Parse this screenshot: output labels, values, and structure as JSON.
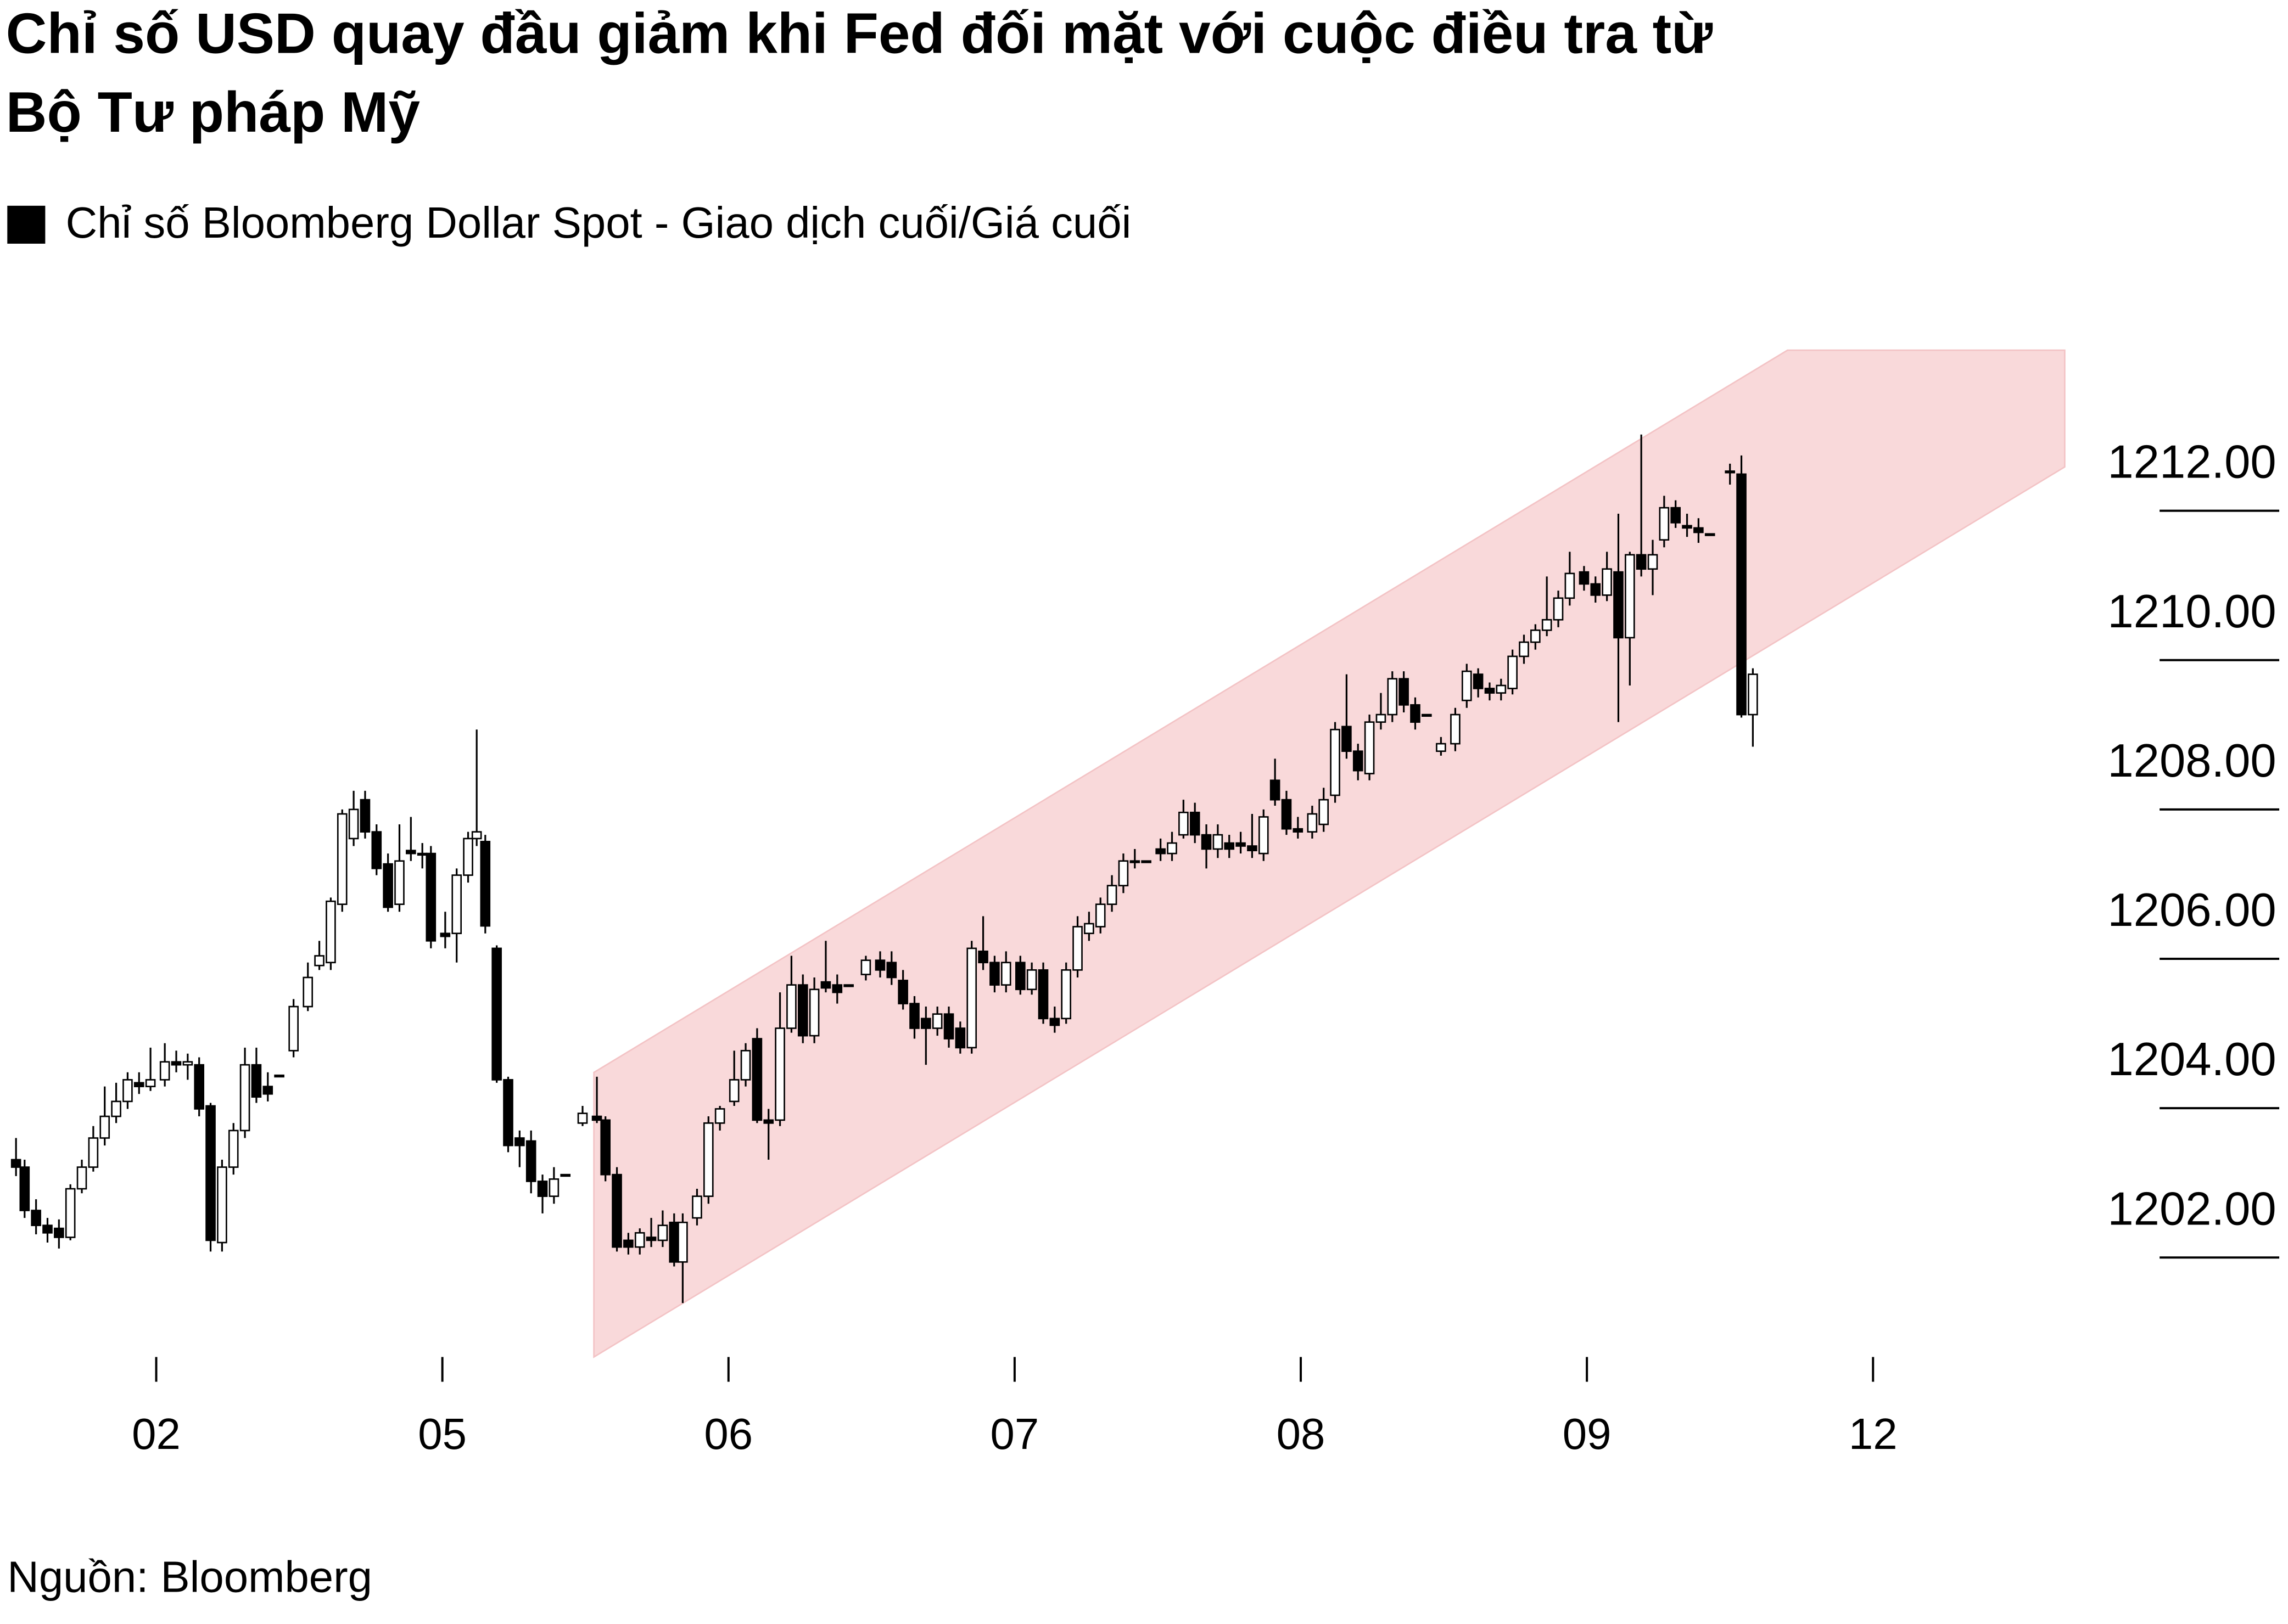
{
  "chart_data": {
    "type": "candlestick",
    "title": [
      "Chỉ số USD quay đầu giảm khi Fed đối mặt với cuộc điều tra từ",
      "Bộ Tư pháp Mỹ"
    ],
    "source": "Nguồn: Bloomberg",
    "xlim": [
      -0.546,
      6.67
    ],
    "ylim": [
      1200.57,
      1214.15
    ],
    "xticks": [
      {
        "value": 0,
        "label": "02"
      },
      {
        "value": 1,
        "label": "05"
      },
      {
        "value": 2,
        "label": "06"
      },
      {
        "value": 3,
        "label": "07"
      },
      {
        "value": 4,
        "label": "08"
      },
      {
        "value": 5,
        "label": "09"
      },
      {
        "value": 6,
        "label": "12"
      }
    ],
    "yticks": [
      {
        "value": 1202,
        "label": "1202.00"
      },
      {
        "value": 1204,
        "label": "1204.00"
      },
      {
        "value": 1206,
        "label": "1206.00"
      },
      {
        "value": 1208,
        "label": "1208.00"
      },
      {
        "value": 1210,
        "label": "1210.00"
      },
      {
        "value": 1212,
        "label": "1212.00"
      }
    ],
    "series": [
      {
        "name": "Chỉ số Bloomberg Dollar Spot - Giao dịch cuối/Giá cuối",
        "color": "#000000",
        "x": [
          -0.49,
          -0.46,
          -0.42,
          -0.38,
          -0.34,
          -0.3,
          -0.26,
          -0.22,
          -0.18,
          -0.14,
          -0.1,
          -0.06,
          -0.02,
          0.03,
          0.07,
          0.11,
          0.15,
          0.19,
          0.23,
          0.27,
          0.31,
          0.35,
          0.39,
          0.43,
          0.48,
          0.53,
          0.57,
          0.61,
          0.65,
          0.69,
          0.73,
          0.77,
          0.81,
          0.85,
          0.89,
          0.93,
          0.96,
          1.01,
          1.05,
          1.09,
          1.12,
          1.15,
          1.19,
          1.23,
          1.27,
          1.31,
          1.35,
          1.39,
          1.43,
          1.49,
          1.54,
          1.57,
          1.61,
          1.65,
          1.69,
          1.73,
          1.77,
          1.81,
          1.84,
          1.89,
          1.93,
          1.97,
          2.02,
          2.06,
          2.1,
          2.14,
          2.18,
          2.22,
          2.26,
          2.3,
          2.34,
          2.38,
          2.42,
          2.48,
          2.53,
          2.57,
          2.61,
          2.65,
          2.69,
          2.73,
          2.77,
          2.81,
          2.85,
          2.89,
          2.93,
          2.97,
          3.02,
          3.06,
          3.1,
          3.14,
          3.18,
          3.22,
          3.26,
          3.3,
          3.34,
          3.38,
          3.42,
          3.46,
          3.51,
          3.55,
          3.59,
          3.63,
          3.67,
          3.71,
          3.75,
          3.79,
          3.83,
          3.87,
          3.91,
          3.95,
          3.99,
          4.04,
          4.08,
          4.12,
          4.16,
          4.2,
          4.24,
          4.28,
          4.32,
          4.36,
          4.4,
          4.44,
          4.49,
          4.54,
          4.58,
          4.62,
          4.66,
          4.7,
          4.74,
          4.78,
          4.82,
          4.86,
          4.9,
          4.94,
          4.99,
          5.03,
          5.07,
          5.11,
          5.15,
          5.19,
          5.23,
          5.27,
          5.31,
          5.35,
          5.39,
          5.43,
          5.5,
          5.54,
          5.58
        ],
        "open": [
          1203.31,
          1203.21,
          1202.63,
          1202.43,
          1202.39,
          1202.27,
          1202.92,
          1203.21,
          1203.6,
          1203.89,
          1204.09,
          1204.34,
          1204.29,
          1204.38,
          1204.62,
          1204.58,
          1204.58,
          1204.03,
          1202.2,
          1203.21,
          1203.7,
          1204.58,
          1204.29,
          1204.44,
          1204.77,
          1205.36,
          1205.91,
          1205.95,
          1206.73,
          1207.61,
          1208.13,
          1207.7,
          1207.27,
          1206.73,
          1207.45,
          1207.41,
          1207.41,
          1206.34,
          1206.34,
          1207.12,
          1207.61,
          1207.57,
          1206.14,
          1204.38,
          1203.6,
          1203.56,
          1203.02,
          1202.82,
          1203.11,
          1203.8,
          1203.89,
          1203.84,
          1203.11,
          1202.23,
          1202.14,
          1202.27,
          1202.23,
          1202.47,
          1201.94,
          1202.53,
          1202.82,
          1203.8,
          1204.09,
          1204.38,
          1204.93,
          1203.84,
          1203.84,
          1205.07,
          1205.65,
          1204.97,
          1205.69,
          1205.65,
          1205.65,
          1205.79,
          1205.98,
          1205.95,
          1205.71,
          1205.4,
          1205.2,
          1205.07,
          1205.26,
          1205.07,
          1204.81,
          1206.1,
          1205.95,
          1205.65,
          1205.95,
          1205.59,
          1205.85,
          1205.2,
          1205.2,
          1205.85,
          1206.34,
          1206.43,
          1206.73,
          1206.98,
          1207.31,
          1207.31,
          1207.47,
          1207.41,
          1207.66,
          1207.96,
          1207.66,
          1207.47,
          1207.55,
          1207.55,
          1207.51,
          1207.41,
          1208.39,
          1208.13,
          1207.74,
          1207.7,
          1207.8,
          1208.19,
          1209.11,
          1208.78,
          1208.48,
          1209.17,
          1209.27,
          1209.75,
          1209.4,
          1209.27,
          1208.78,
          1208.88,
          1209.46,
          1209.81,
          1209.62,
          1209.56,
          1209.62,
          1210.05,
          1210.24,
          1210.4,
          1210.54,
          1210.83,
          1211.18,
          1211.02,
          1210.87,
          1211.18,
          1210.3,
          1211.41,
          1211.22,
          1211.61,
          1212.04,
          1211.8,
          1211.77,
          1211.69,
          1212.53,
          1212.49,
          1209.27
        ],
        "high": [
          1203.6,
          1203.31,
          1202.78,
          1202.53,
          1202.51,
          1202.98,
          1203.31,
          1203.76,
          1204.29,
          1204.34,
          1204.48,
          1204.48,
          1204.81,
          1204.87,
          1204.77,
          1204.73,
          1204.68,
          1204.07,
          1203.31,
          1203.8,
          1204.81,
          1204.81,
          1204.48,
          1204.44,
          1205.46,
          1205.95,
          1206.24,
          1206.82,
          1208.0,
          1208.25,
          1208.25,
          1207.8,
          1207.41,
          1207.8,
          1207.9,
          1207.55,
          1207.51,
          1206.63,
          1207.21,
          1207.7,
          1209.07,
          1207.66,
          1206.18,
          1204.42,
          1203.7,
          1203.7,
          1203.11,
          1203.21,
          1203.11,
          1204.03,
          1204.42,
          1203.89,
          1203.21,
          1202.33,
          1202.39,
          1202.53,
          1202.63,
          1202.59,
          1202.59,
          1202.92,
          1203.89,
          1204.03,
          1204.77,
          1204.87,
          1205.07,
          1203.99,
          1205.55,
          1206.04,
          1205.79,
          1205.75,
          1206.24,
          1205.79,
          1205.65,
          1206.04,
          1206.1,
          1206.1,
          1205.85,
          1205.5,
          1205.36,
          1205.36,
          1205.36,
          1205.16,
          1206.24,
          1206.57,
          1206.04,
          1206.1,
          1206.04,
          1205.95,
          1205.95,
          1205.36,
          1205.95,
          1206.57,
          1206.63,
          1206.82,
          1207.12,
          1207.41,
          1207.47,
          1207.31,
          1207.61,
          1207.7,
          1208.13,
          1208.09,
          1207.8,
          1207.8,
          1207.66,
          1207.7,
          1207.94,
          1208.0,
          1208.68,
          1208.25,
          1207.9,
          1208.05,
          1208.29,
          1209.17,
          1209.81,
          1208.88,
          1209.27,
          1209.56,
          1209.85,
          1209.85,
          1209.5,
          1209.27,
          1208.97,
          1209.36,
          1209.95,
          1209.89,
          1209.7,
          1209.75,
          1210.14,
          1210.34,
          1210.48,
          1211.12,
          1210.93,
          1211.45,
          1211.26,
          1211.12,
          1211.45,
          1211.96,
          1211.45,
          1213.02,
          1211.61,
          1212.2,
          1212.14,
          1211.96,
          1211.9,
          1211.69,
          1212.63,
          1212.74,
          1209.89
        ],
        "low": [
          1203.09,
          1202.53,
          1202.31,
          1202.2,
          1202.12,
          1202.23,
          1202.86,
          1203.15,
          1203.5,
          1203.8,
          1203.99,
          1204.19,
          1204.23,
          1204.29,
          1204.48,
          1204.38,
          1203.89,
          1202.08,
          1202.08,
          1203.11,
          1203.6,
          1204.07,
          1204.09,
          1204.44,
          1204.68,
          1205.3,
          1205.85,
          1205.85,
          1206.63,
          1207.51,
          1207.61,
          1207.12,
          1206.63,
          1206.63,
          1207.31,
          1207.21,
          1206.14,
          1206.14,
          1205.95,
          1207.02,
          1207.51,
          1206.34,
          1204.34,
          1203.41,
          1203.21,
          1202.86,
          1202.59,
          1202.72,
          1203.11,
          1203.76,
          1203.8,
          1203.02,
          1202.08,
          1202.04,
          1202.04,
          1202.14,
          1202.14,
          1201.88,
          1201.39,
          1202.43,
          1202.72,
          1203.7,
          1204.03,
          1204.29,
          1203.8,
          1203.31,
          1203.76,
          1205.01,
          1204.87,
          1204.87,
          1205.55,
          1205.4,
          1205.65,
          1205.71,
          1205.75,
          1205.65,
          1205.32,
          1204.93,
          1204.58,
          1204.97,
          1204.81,
          1204.73,
          1204.73,
          1205.85,
          1205.55,
          1205.55,
          1205.52,
          1205.52,
          1205.13,
          1205.01,
          1205.13,
          1205.75,
          1206.24,
          1206.34,
          1206.63,
          1206.88,
          1207.21,
          1207.31,
          1207.31,
          1207.31,
          1207.61,
          1207.55,
          1207.21,
          1207.35,
          1207.35,
          1207.41,
          1207.35,
          1207.31,
          1208.05,
          1207.66,
          1207.61,
          1207.61,
          1207.7,
          1208.09,
          1208.68,
          1208.39,
          1208.39,
          1209.07,
          1209.17,
          1209.3,
          1209.07,
          1209.27,
          1208.72,
          1208.78,
          1209.36,
          1209.5,
          1209.46,
          1209.46,
          1209.54,
          1209.95,
          1210.14,
          1210.32,
          1210.44,
          1210.73,
          1210.93,
          1210.77,
          1210.79,
          1209.17,
          1209.66,
          1211.12,
          1210.87,
          1211.51,
          1211.77,
          1211.65,
          1211.57,
          1211.69,
          1212.35,
          1209.23,
          1208.84
        ],
        "close": [
          1203.21,
          1202.63,
          1202.43,
          1202.33,
          1202.27,
          1202.92,
          1203.21,
          1203.6,
          1203.89,
          1204.09,
          1204.38,
          1204.29,
          1204.38,
          1204.62,
          1204.58,
          1204.62,
          1203.99,
          1202.23,
          1203.21,
          1203.7,
          1204.58,
          1204.15,
          1204.19,
          1204.44,
          1205.36,
          1205.75,
          1206.04,
          1206.77,
          1207.94,
          1208.0,
          1207.7,
          1207.21,
          1206.69,
          1207.31,
          1207.41,
          1207.41,
          1206.24,
          1206.3,
          1207.12,
          1207.61,
          1207.7,
          1206.44,
          1204.38,
          1203.5,
          1203.5,
          1203.02,
          1202.82,
          1203.05,
          1203.11,
          1203.93,
          1203.84,
          1203.11,
          1202.14,
          1202.14,
          1202.33,
          1202.23,
          1202.43,
          1201.94,
          1202.47,
          1202.82,
          1203.8,
          1203.99,
          1204.38,
          1204.77,
          1203.84,
          1203.8,
          1205.07,
          1205.65,
          1204.97,
          1205.59,
          1205.61,
          1205.55,
          1205.65,
          1205.98,
          1205.85,
          1205.75,
          1205.4,
          1205.07,
          1205.07,
          1205.26,
          1204.93,
          1204.81,
          1206.14,
          1205.95,
          1205.65,
          1205.95,
          1205.59,
          1205.85,
          1205.2,
          1205.11,
          1205.85,
          1206.43,
          1206.47,
          1206.73,
          1206.98,
          1207.31,
          1207.31,
          1207.31,
          1207.41,
          1207.55,
          1207.96,
          1207.66,
          1207.47,
          1207.66,
          1207.47,
          1207.51,
          1207.45,
          1207.9,
          1208.13,
          1207.74,
          1207.7,
          1207.94,
          1208.13,
          1209.07,
          1208.78,
          1208.52,
          1209.17,
          1209.27,
          1209.75,
          1209.4,
          1209.17,
          1209.27,
          1208.88,
          1209.27,
          1209.85,
          1209.62,
          1209.56,
          1209.66,
          1210.05,
          1210.24,
          1210.4,
          1210.54,
          1210.83,
          1211.16,
          1211.02,
          1210.87,
          1211.22,
          1210.3,
          1211.41,
          1211.22,
          1211.41,
          1212.04,
          1211.84,
          1211.77,
          1211.71,
          1211.69,
          1212.53,
          1209.27,
          1209.81
        ]
      }
    ]
  }
}
